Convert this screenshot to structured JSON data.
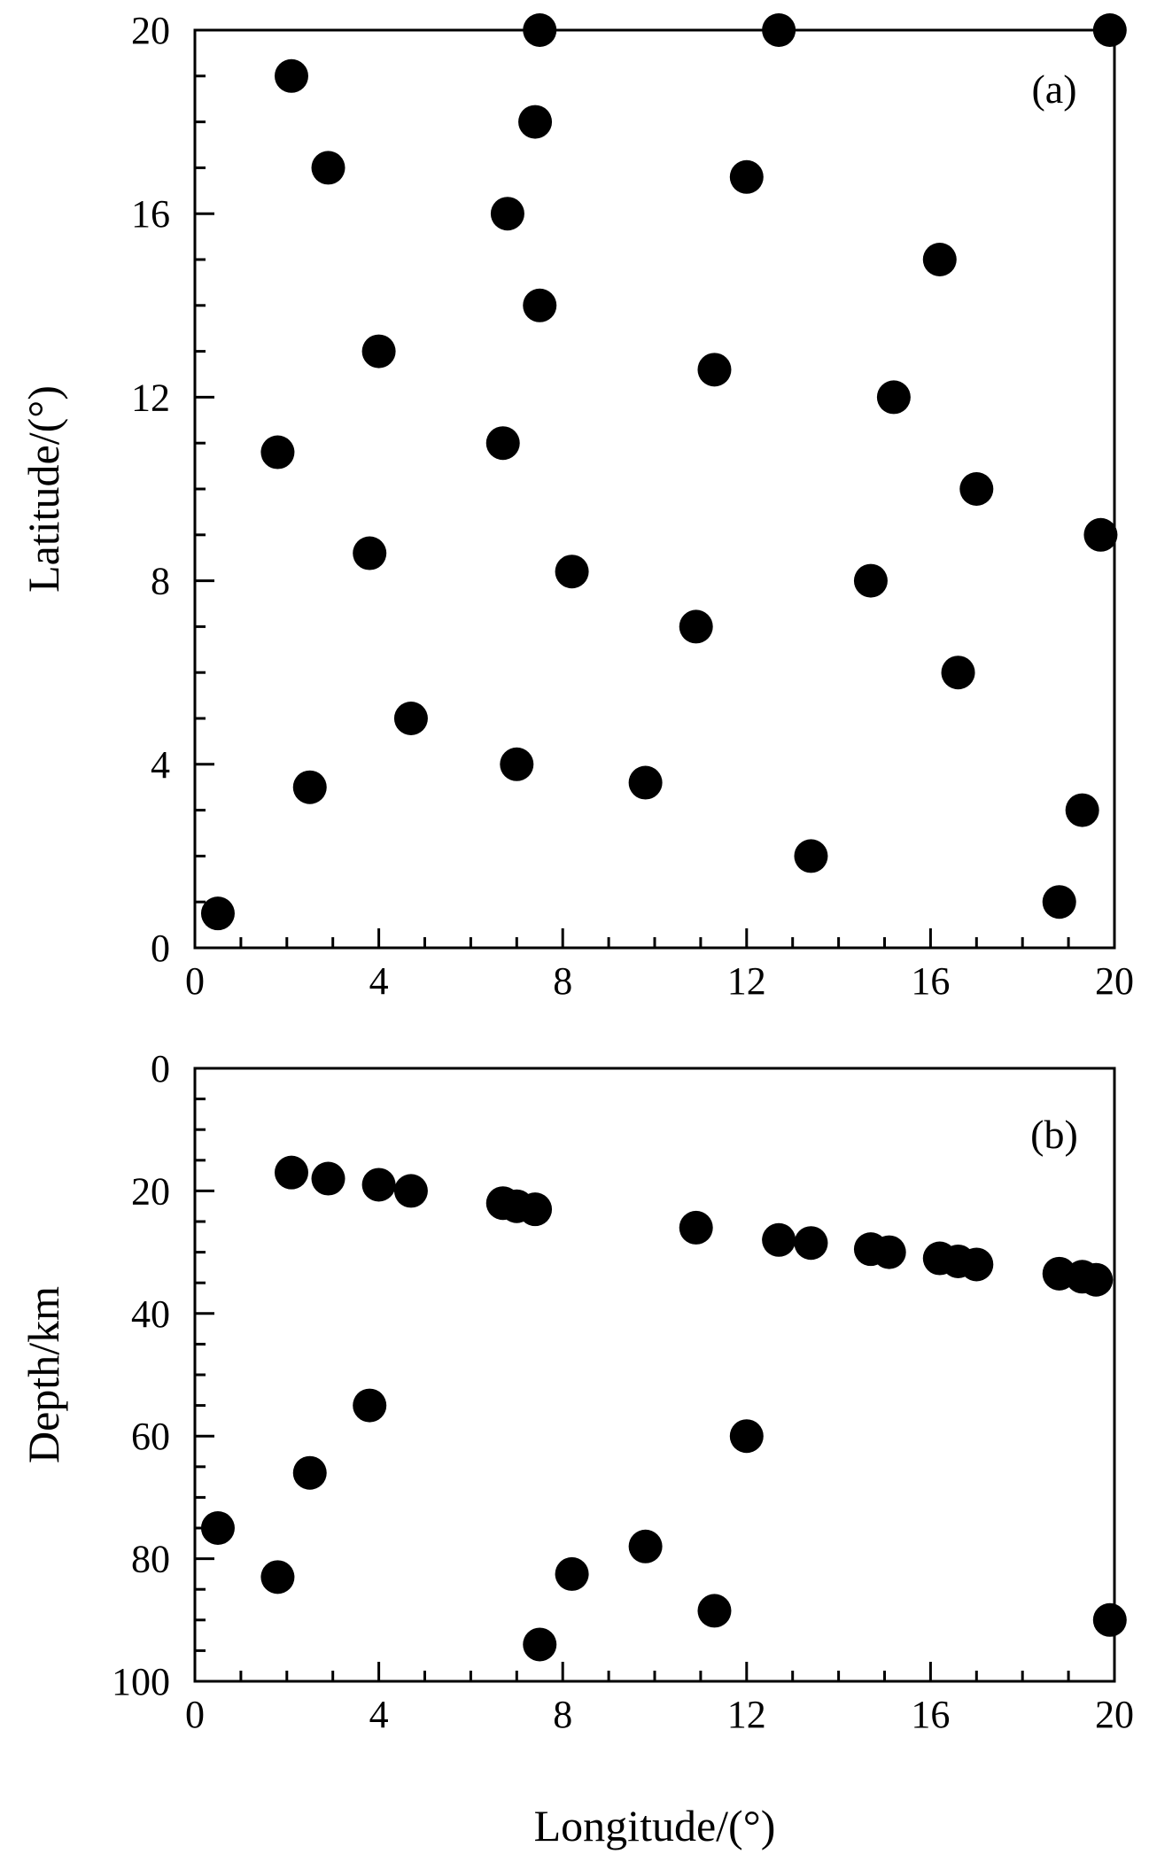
{
  "chart_data": [
    {
      "type": "scatter",
      "panel_label": "(a)",
      "xlabel": "",
      "ylabel": "Latitude/(°)",
      "xlim": [
        0,
        20
      ],
      "ylim": [
        0,
        20
      ],
      "y_reversed": false,
      "x_ticks": [
        "0",
        "4",
        "8",
        "12",
        "16",
        "20"
      ],
      "y_ticks": [
        "0",
        "4",
        "8",
        "12",
        "16",
        "20"
      ],
      "grid": false,
      "points": [
        {
          "x": 0.5,
          "y": 0.75
        },
        {
          "x": 1.8,
          "y": 10.8
        },
        {
          "x": 2.1,
          "y": 19.0
        },
        {
          "x": 2.5,
          "y": 3.5
        },
        {
          "x": 2.9,
          "y": 17.0
        },
        {
          "x": 3.8,
          "y": 8.6
        },
        {
          "x": 4.0,
          "y": 13.0
        },
        {
          "x": 4.7,
          "y": 5.0
        },
        {
          "x": 6.7,
          "y": 11.0
        },
        {
          "x": 6.8,
          "y": 16.0
        },
        {
          "x": 7.0,
          "y": 4.0
        },
        {
          "x": 7.4,
          "y": 18.0
        },
        {
          "x": 7.5,
          "y": 14.0
        },
        {
          "x": 7.5,
          "y": 20.0
        },
        {
          "x": 8.2,
          "y": 8.2
        },
        {
          "x": 9.8,
          "y": 3.6
        },
        {
          "x": 10.9,
          "y": 7.0
        },
        {
          "x": 11.3,
          "y": 12.6
        },
        {
          "x": 12.0,
          "y": 16.8
        },
        {
          "x": 12.7,
          "y": 20.0
        },
        {
          "x": 13.4,
          "y": 2.0
        },
        {
          "x": 14.7,
          "y": 8.0
        },
        {
          "x": 15.2,
          "y": 12.0
        },
        {
          "x": 16.2,
          "y": 15.0
        },
        {
          "x": 16.6,
          "y": 6.0
        },
        {
          "x": 17.0,
          "y": 10.0
        },
        {
          "x": 18.8,
          "y": 1.0
        },
        {
          "x": 19.3,
          "y": 3.0
        },
        {
          "x": 19.7,
          "y": 9.0
        },
        {
          "x": 19.9,
          "y": 20.0
        }
      ]
    },
    {
      "type": "scatter",
      "panel_label": "(b)",
      "xlabel": "Longitude/(°)",
      "ylabel": "Depth/km",
      "xlim": [
        0,
        20
      ],
      "ylim": [
        0,
        100
      ],
      "y_reversed": true,
      "x_ticks": [
        "0",
        "4",
        "8",
        "12",
        "16",
        "20"
      ],
      "y_ticks": [
        "0",
        "20",
        "40",
        "60",
        "80",
        "100"
      ],
      "grid": false,
      "points": [
        {
          "x": 0.5,
          "y": 75
        },
        {
          "x": 1.8,
          "y": 83
        },
        {
          "x": 2.1,
          "y": 17
        },
        {
          "x": 2.5,
          "y": 66
        },
        {
          "x": 2.9,
          "y": 18
        },
        {
          "x": 3.8,
          "y": 55
        },
        {
          "x": 4.0,
          "y": 19
        },
        {
          "x": 4.7,
          "y": 20
        },
        {
          "x": 6.7,
          "y": 22
        },
        {
          "x": 7.0,
          "y": 22.5
        },
        {
          "x": 7.4,
          "y": 23
        },
        {
          "x": 7.5,
          "y": 94
        },
        {
          "x": 8.2,
          "y": 82.5
        },
        {
          "x": 9.8,
          "y": 78
        },
        {
          "x": 10.9,
          "y": 26
        },
        {
          "x": 11.3,
          "y": 88.5
        },
        {
          "x": 12.0,
          "y": 60
        },
        {
          "x": 12.7,
          "y": 28
        },
        {
          "x": 13.4,
          "y": 28.5
        },
        {
          "x": 14.7,
          "y": 29.5
        },
        {
          "x": 15.1,
          "y": 30
        },
        {
          "x": 16.2,
          "y": 31
        },
        {
          "x": 16.6,
          "y": 31.5
        },
        {
          "x": 17.0,
          "y": 32
        },
        {
          "x": 18.8,
          "y": 33.5
        },
        {
          "x": 19.3,
          "y": 34
        },
        {
          "x": 19.6,
          "y": 34.5
        },
        {
          "x": 19.9,
          "y": 90
        }
      ]
    }
  ]
}
